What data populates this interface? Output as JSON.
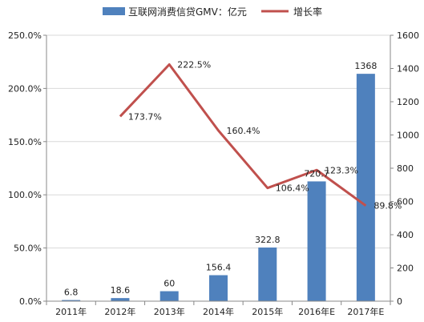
{
  "chart_data": {
    "type": "bar",
    "categories": [
      "2011年",
      "2012年",
      "2013年",
      "2014年",
      "2015年",
      "2016年E",
      "2017年E"
    ],
    "series": [
      {
        "name": "互联网消费信贷GMV：亿元",
        "type": "bar",
        "axis": "right",
        "values": [
          6.8,
          18.6,
          60,
          156.4,
          322.8,
          720.7,
          1368
        ],
        "labels": [
          "6.8",
          "18.6",
          "60",
          "156.4",
          "322.8",
          "720.7",
          "1368"
        ],
        "color": "#4f81bd"
      },
      {
        "name": "增长率",
        "type": "line",
        "axis": "left",
        "values": [
          null,
          173.7,
          222.5,
          160.4,
          106.4,
          123.3,
          89.8
        ],
        "labels": [
          "",
          "173.7%",
          "222.5%",
          "160.4%",
          "106.4%",
          "123.3%",
          "89.8%"
        ],
        "color": "#c0504d"
      }
    ],
    "left_axis": {
      "range": [
        0,
        250
      ],
      "ticks": [
        0,
        50,
        100,
        150,
        200,
        250
      ],
      "tick_labels": [
        "0.0%",
        "50.0%",
        "100.0%",
        "150.0%",
        "200.0%",
        "250.0%"
      ]
    },
    "right_axis": {
      "range": [
        0,
        1600
      ],
      "ticks": [
        0,
        200,
        400,
        600,
        800,
        1000,
        1200,
        1400,
        1600
      ],
      "tick_labels": [
        "0",
        "200",
        "400",
        "600",
        "800",
        "1000",
        "1200",
        "1400",
        "1600"
      ]
    },
    "title": "",
    "xlabel": "",
    "ylabel": "",
    "grid": true,
    "legend_position": "top"
  }
}
